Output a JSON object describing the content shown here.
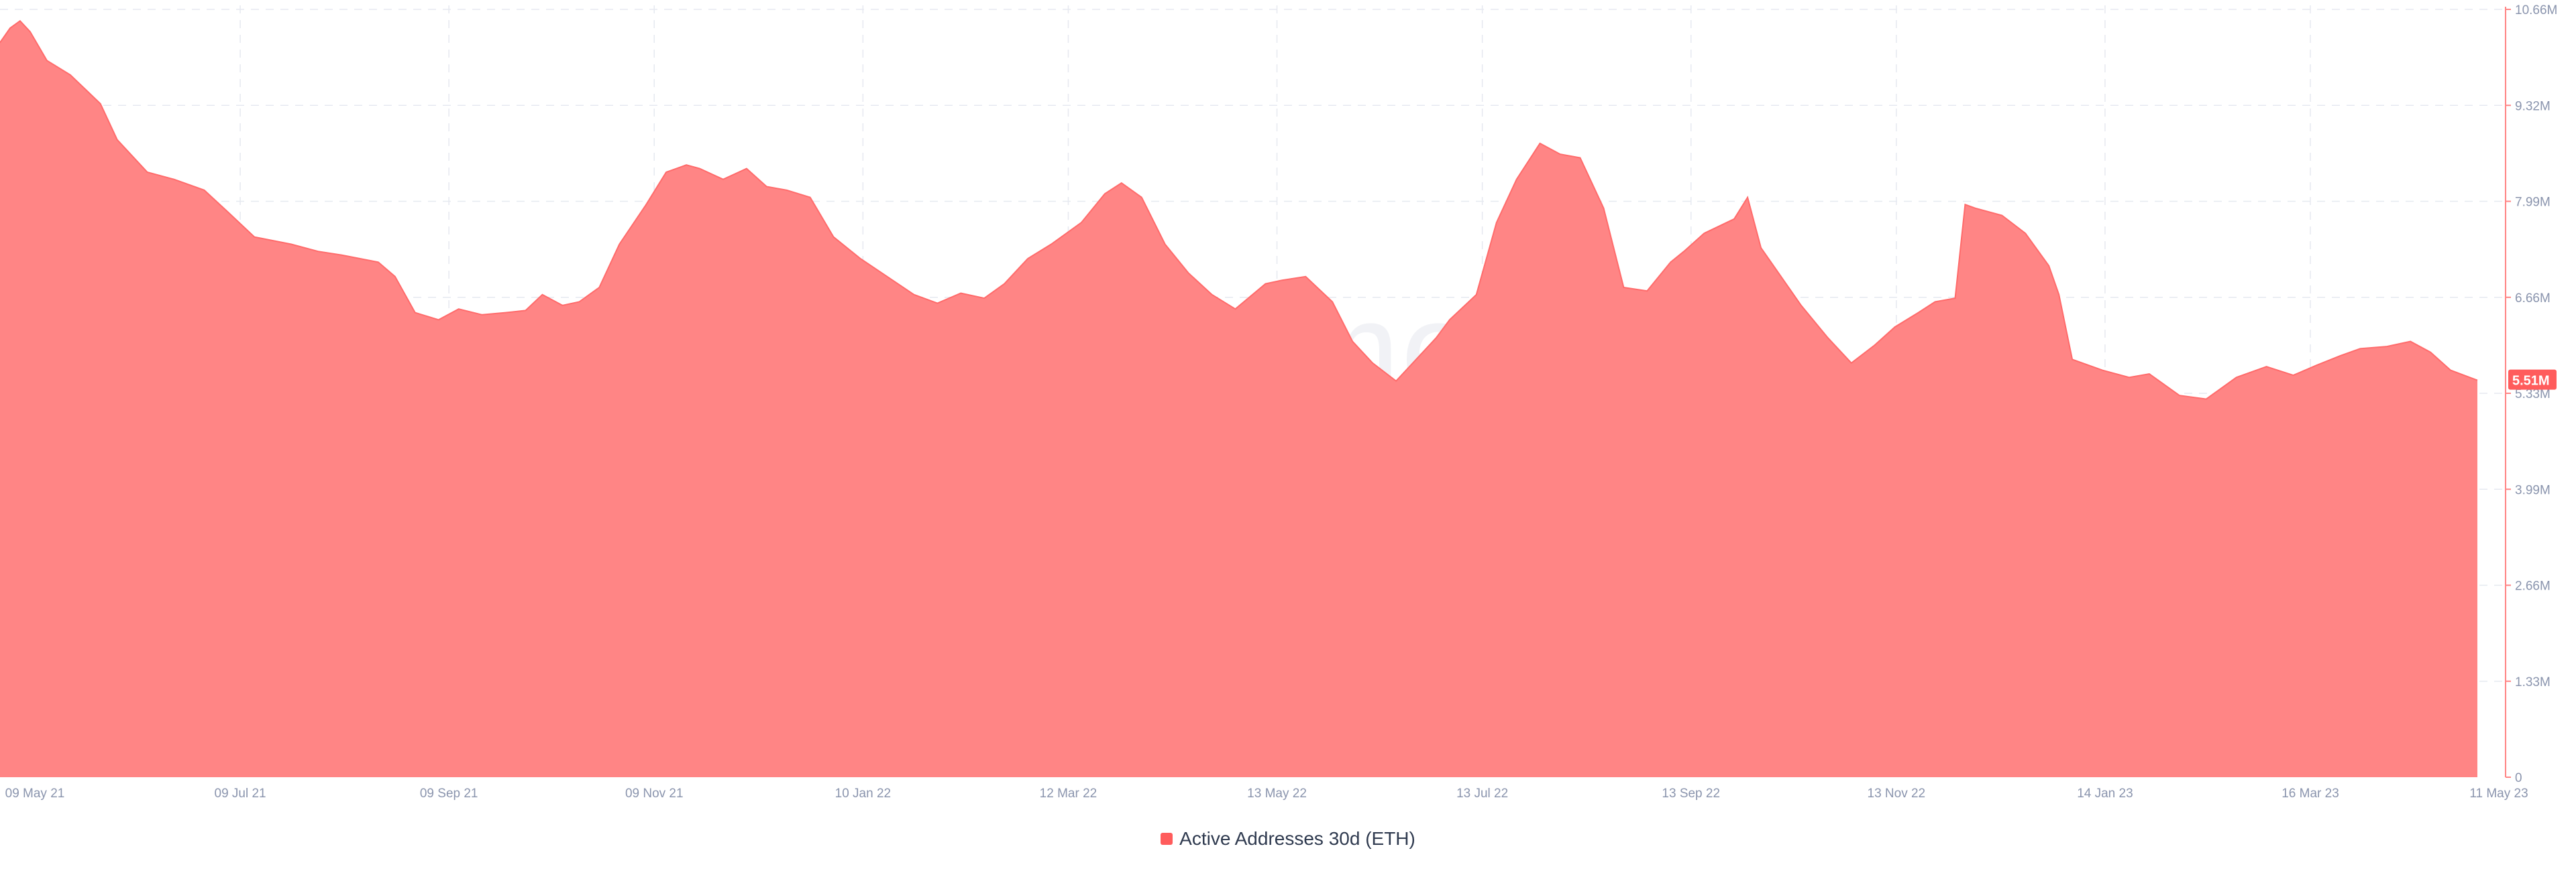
{
  "colors": {
    "series": "#ff8585",
    "series_line": "#ff6b6b",
    "badge": "#ff5c5c",
    "grid": "#e6e9f0",
    "axis_line": "#ff8585",
    "tick_text": "#8a94ad"
  },
  "watermark": "santiment",
  "legend": {
    "label": "Active Addresses 30d (ETH)"
  },
  "chart_data": {
    "type": "area",
    "title": "",
    "xlabel": "",
    "ylabel": "",
    "x_ticks": [
      "09 May 21",
      "09 Jul 21",
      "09 Sep 21",
      "09 Nov 21",
      "10 Jan 22",
      "12 Mar 22",
      "13 May 22",
      "13 Jul 22",
      "13 Sep 22",
      "13 Nov 22",
      "14 Jan 23",
      "16 Mar 23",
      "11 May 23"
    ],
    "y_ticks": [
      "10.66M",
      "9.32M",
      "7.99M",
      "6.66M",
      "5.33M",
      "3.99M",
      "2.66M",
      "1.33M",
      "0"
    ],
    "ylim": [
      0,
      10.66
    ],
    "y_unit": "M",
    "grid": true,
    "legend_position": "bottom-center",
    "last_value_label": "5.51M",
    "series": [
      {
        "name": "Active Addresses 30d (ETH)",
        "x": [
          "2021-05-01",
          "2021-05-04",
          "2021-05-07",
          "2021-05-10",
          "2021-05-15",
          "2021-05-22",
          "2021-05-31",
          "2021-06-05",
          "2021-06-14",
          "2021-06-22",
          "2021-07-01",
          "2021-07-08",
          "2021-07-16",
          "2021-07-27",
          "2021-08-04",
          "2021-08-11",
          "2021-08-22",
          "2021-08-27",
          "2021-09-02",
          "2021-09-09",
          "2021-09-15",
          "2021-09-22",
          "2021-09-29",
          "2021-10-05",
          "2021-10-10",
          "2021-10-16",
          "2021-10-21",
          "2021-10-27",
          "2021-11-02",
          "2021-11-10",
          "2021-11-16",
          "2021-11-22",
          "2021-11-26",
          "2021-12-03",
          "2021-12-10",
          "2021-12-16",
          "2021-12-22",
          "2021-12-29",
          "2022-01-05",
          "2022-01-13",
          "2022-01-21",
          "2022-01-29",
          "2022-02-05",
          "2022-02-12",
          "2022-02-19",
          "2022-02-25",
          "2022-03-04",
          "2022-03-11",
          "2022-03-20",
          "2022-03-27",
          "2022-04-01",
          "2022-04-07",
          "2022-04-14",
          "2022-04-21",
          "2022-04-28",
          "2022-05-05",
          "2022-05-14",
          "2022-05-19",
          "2022-05-26",
          "2022-06-03",
          "2022-06-09",
          "2022-06-15",
          "2022-06-22",
          "2022-06-30",
          "2022-07-04",
          "2022-07-08",
          "2022-07-16",
          "2022-07-22",
          "2022-07-28",
          "2022-08-04",
          "2022-08-10",
          "2022-08-16",
          "2022-08-23",
          "2022-08-29",
          "2022-09-05",
          "2022-09-12",
          "2022-09-16",
          "2022-09-22",
          "2022-10-01",
          "2022-10-05",
          "2022-10-09",
          "2022-10-15",
          "2022-10-21",
          "2022-10-29",
          "2022-11-05",
          "2022-11-12",
          "2022-11-18",
          "2022-11-25",
          "2022-11-30",
          "2022-12-06",
          "2022-12-09",
          "2022-12-12",
          "2022-12-20",
          "2022-12-27",
          "2023-01-03",
          "2023-01-06",
          "2023-01-10",
          "2023-01-19",
          "2023-01-27",
          "2023-02-02",
          "2023-02-11",
          "2023-02-19",
          "2023-02-28",
          "2023-03-09",
          "2023-03-17",
          "2023-03-24",
          "2023-03-31",
          "2023-04-06",
          "2023-04-14",
          "2023-04-21",
          "2023-04-27",
          "2023-05-03",
          "2023-05-11"
        ],
        "values": [
          10.2,
          10.4,
          10.5,
          10.35,
          9.95,
          9.75,
          9.35,
          8.85,
          8.4,
          8.3,
          8.15,
          7.85,
          7.5,
          7.4,
          7.3,
          7.25,
          7.15,
          6.95,
          6.45,
          6.35,
          6.5,
          6.42,
          6.45,
          6.48,
          6.7,
          6.55,
          6.6,
          6.8,
          7.4,
          7.95,
          8.4,
          8.5,
          8.45,
          8.3,
          8.45,
          8.2,
          8.15,
          8.05,
          7.5,
          7.2,
          6.95,
          6.7,
          6.58,
          6.72,
          6.65,
          6.85,
          7.2,
          7.4,
          7.7,
          8.1,
          8.25,
          8.05,
          7.4,
          7.0,
          6.7,
          6.5,
          6.85,
          6.9,
          6.95,
          6.6,
          6.05,
          5.75,
          5.5,
          5.9,
          6.1,
          6.35,
          6.7,
          7.7,
          8.3,
          8.8,
          8.65,
          8.6,
          7.9,
          6.8,
          6.75,
          7.15,
          7.3,
          7.55,
          7.75,
          8.05,
          7.35,
          6.95,
          6.55,
          6.1,
          5.75,
          6.0,
          6.25,
          6.45,
          6.6,
          6.65,
          7.95,
          7.9,
          7.8,
          7.55,
          7.1,
          6.7,
          5.8,
          5.65,
          5.55,
          5.6,
          5.3,
          5.25,
          5.55,
          5.7,
          5.58,
          5.72,
          5.85,
          5.95,
          5.98,
          6.05,
          5.9,
          5.65,
          5.51
        ]
      }
    ]
  }
}
